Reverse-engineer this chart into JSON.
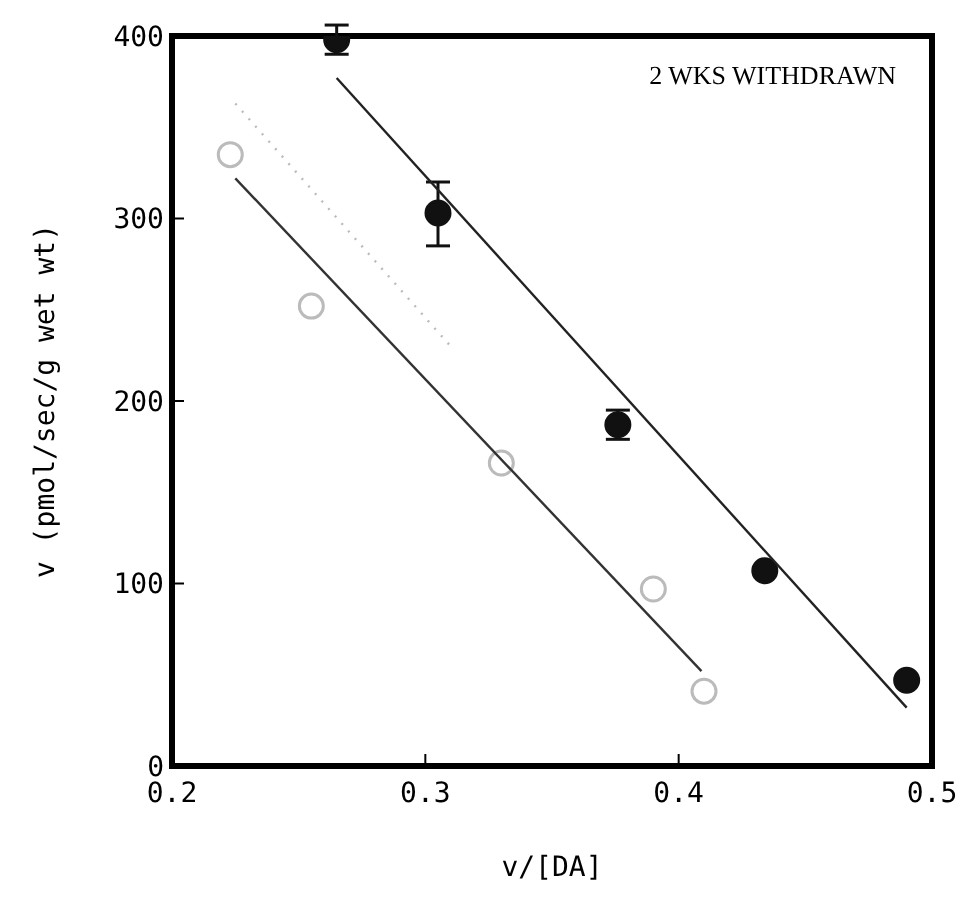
{
  "chart_data": {
    "type": "scatter",
    "xlabel": "v/[DA]",
    "ylabel": "v (pmol/sec/g wet wt)",
    "annotations": [
      "2 WKS WITHDRAWN"
    ],
    "xlim": [
      0.2,
      0.5
    ],
    "xticks": [
      0.2,
      0.3,
      0.4,
      0.5
    ],
    "ylim": [
      0,
      400
    ],
    "yticks": [
      0,
      100,
      200,
      300,
      400
    ],
    "grid": false,
    "legend": false,
    "series": [
      {
        "type": "scatter",
        "color": "#111111",
        "marker": "circle",
        "x": [
          0.265,
          0.305,
          0.376,
          0.434,
          0.49
        ],
        "values": [
          398,
          303,
          187,
          107,
          47
        ],
        "errors": [
          8,
          [
            285,
            320
          ],
          8,
          null,
          null
        ]
      },
      {
        "type": "line",
        "color": "#222222",
        "line_style": "solid",
        "marker": "none",
        "x": [
          0.265,
          0.49
        ],
        "values": [
          377,
          32
        ]
      },
      {
        "type": "scatter",
        "color": "#bbbbbb",
        "marker": "circle",
        "x": [
          0.223,
          0.255,
          0.33,
          0.39,
          0.41
        ],
        "values": [
          335,
          252,
          166,
          97,
          41
        ]
      },
      {
        "type": "line",
        "color": "#333333",
        "line_style": "solid",
        "marker": "none",
        "x": [
          0.225,
          0.409
        ],
        "values": [
          322,
          52
        ]
      },
      {
        "type": "line",
        "color": "#bbbbbb",
        "line_style": "dotted",
        "marker": "none",
        "x": [
          0.225,
          0.31
        ],
        "values": [
          363,
          230
        ]
      }
    ]
  }
}
